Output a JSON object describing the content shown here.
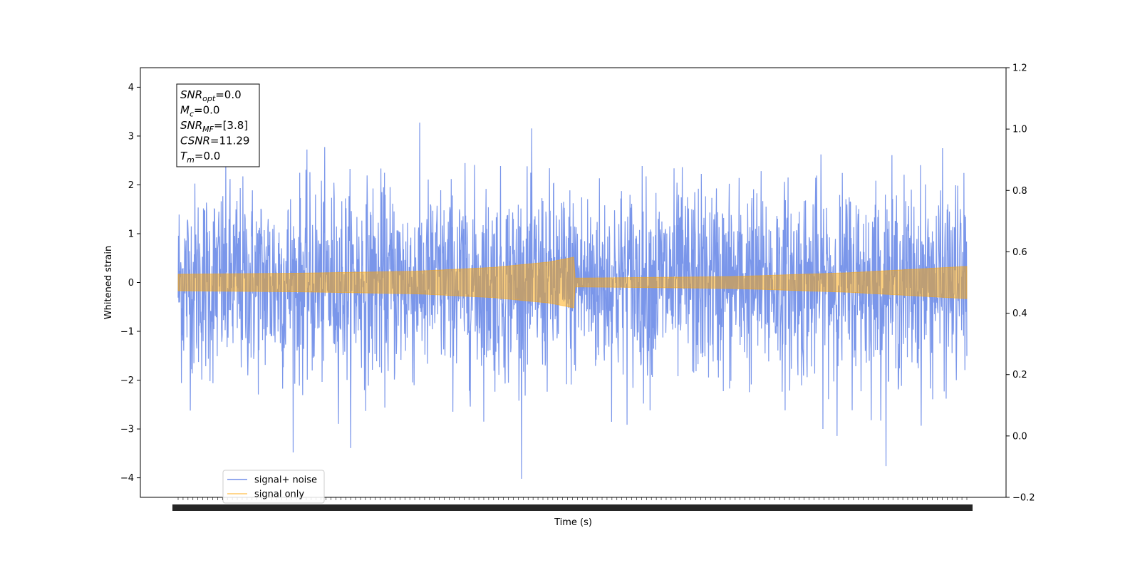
{
  "chart_data": {
    "type": "line",
    "title": "",
    "xlabel": "Time (s)",
    "ylabel": "Whitened strain",
    "ylim": [
      -4.4,
      4.4
    ],
    "y_ticks": [
      -4,
      -3,
      -2,
      -1,
      0,
      1,
      2,
      3,
      4
    ],
    "y2lim": [
      -0.2,
      1.2
    ],
    "y2_ticks": [
      -0.2,
      0.0,
      0.2,
      0.4,
      0.6,
      0.8,
      1.0,
      1.2
    ],
    "xlim": [
      0,
      1
    ],
    "grid": false,
    "legend_position": "lower-left",
    "series": [
      {
        "name": "signal+ noise",
        "color": "#4169e1",
        "noise_std": 1.0,
        "max": 4.0,
        "min": -4.05
      },
      {
        "name": "signal only",
        "color": "#ffa500",
        "envelope": [
          {
            "x": 0.0,
            "amp": 0.17
          },
          {
            "x": 0.15,
            "amp": 0.19
          },
          {
            "x": 0.3,
            "amp": 0.23
          },
          {
            "x": 0.4,
            "amp": 0.31
          },
          {
            "x": 0.47,
            "amp": 0.42
          },
          {
            "x": 0.502,
            "amp": 0.52
          },
          {
            "x": 0.503,
            "amp": 0.09
          },
          {
            "x": 0.7,
            "amp": 0.12
          },
          {
            "x": 0.85,
            "amp": 0.2
          },
          {
            "x": 1.0,
            "amp": 0.33
          }
        ]
      }
    ],
    "annotation": {
      "lines": [
        {
          "base": "SNR",
          "sub": "opt",
          "value": "=0.0"
        },
        {
          "base": "M",
          "sub": "c",
          "value": "=0.0"
        },
        {
          "base": "SNR",
          "sub": "MF",
          "value": "=[3.8]"
        },
        {
          "base": "CSNR",
          "sub": "",
          "value": "=11.29"
        },
        {
          "base": "T",
          "sub": "m",
          "value": "=0.0"
        }
      ]
    }
  }
}
